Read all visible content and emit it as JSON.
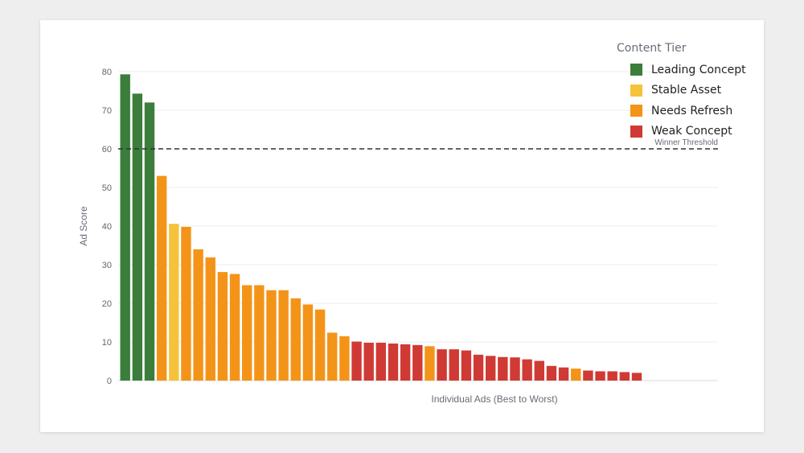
{
  "chart_data": {
    "type": "bar",
    "xlabel": "Individual Ads (Best to Worst)",
    "ylabel": "Ad Score",
    "ylim": [
      0,
      80
    ],
    "yticks": [
      0,
      10,
      20,
      30,
      40,
      50,
      60,
      70,
      80
    ],
    "grid": true,
    "legend": {
      "title": "Content Tier",
      "placement": "top-right",
      "entries": [
        {
          "name": "Leading Concept",
          "color": "#3b7d3b"
        },
        {
          "name": "Stable Asset",
          "color": "#f5c33b"
        },
        {
          "name": "Needs Refresh",
          "color": "#f39419"
        },
        {
          "name": "Weak Concept",
          "color": "#d03a34"
        }
      ]
    },
    "threshold": {
      "label": "Winner Threshold",
      "value": 60
    },
    "bars": [
      {
        "value": 79.3,
        "tier": "Leading Concept"
      },
      {
        "value": 74.3,
        "tier": "Leading Concept"
      },
      {
        "value": 72.0,
        "tier": "Leading Concept"
      },
      {
        "value": 53.0,
        "tier": "Needs Refresh"
      },
      {
        "value": 40.6,
        "tier": "Stable Asset"
      },
      {
        "value": 39.8,
        "tier": "Needs Refresh"
      },
      {
        "value": 34.0,
        "tier": "Needs Refresh"
      },
      {
        "value": 31.9,
        "tier": "Needs Refresh"
      },
      {
        "value": 28.1,
        "tier": "Needs Refresh"
      },
      {
        "value": 27.6,
        "tier": "Needs Refresh"
      },
      {
        "value": 24.7,
        "tier": "Needs Refresh"
      },
      {
        "value": 24.7,
        "tier": "Needs Refresh"
      },
      {
        "value": 23.4,
        "tier": "Needs Refresh"
      },
      {
        "value": 23.4,
        "tier": "Needs Refresh"
      },
      {
        "value": 21.3,
        "tier": "Needs Refresh"
      },
      {
        "value": 19.7,
        "tier": "Needs Refresh"
      },
      {
        "value": 18.4,
        "tier": "Needs Refresh"
      },
      {
        "value": 12.4,
        "tier": "Needs Refresh"
      },
      {
        "value": 11.5,
        "tier": "Needs Refresh"
      },
      {
        "value": 10.1,
        "tier": "Weak Concept"
      },
      {
        "value": 9.8,
        "tier": "Weak Concept"
      },
      {
        "value": 9.8,
        "tier": "Weak Concept"
      },
      {
        "value": 9.6,
        "tier": "Weak Concept"
      },
      {
        "value": 9.4,
        "tier": "Weak Concept"
      },
      {
        "value": 9.2,
        "tier": "Weak Concept"
      },
      {
        "value": 8.9,
        "tier": "Needs Refresh"
      },
      {
        "value": 8.1,
        "tier": "Weak Concept"
      },
      {
        "value": 8.1,
        "tier": "Weak Concept"
      },
      {
        "value": 7.8,
        "tier": "Weak Concept"
      },
      {
        "value": 6.7,
        "tier": "Weak Concept"
      },
      {
        "value": 6.4,
        "tier": "Weak Concept"
      },
      {
        "value": 6.1,
        "tier": "Weak Concept"
      },
      {
        "value": 6.0,
        "tier": "Weak Concept"
      },
      {
        "value": 5.5,
        "tier": "Weak Concept"
      },
      {
        "value": 5.1,
        "tier": "Weak Concept"
      },
      {
        "value": 3.8,
        "tier": "Weak Concept"
      },
      {
        "value": 3.4,
        "tier": "Weak Concept"
      },
      {
        "value": 3.1,
        "tier": "Needs Refresh"
      },
      {
        "value": 2.6,
        "tier": "Weak Concept"
      },
      {
        "value": 2.4,
        "tier": "Weak Concept"
      },
      {
        "value": 2.4,
        "tier": "Weak Concept"
      },
      {
        "value": 2.2,
        "tier": "Weak Concept"
      },
      {
        "value": 2.0,
        "tier": "Weak Concept"
      }
    ]
  }
}
